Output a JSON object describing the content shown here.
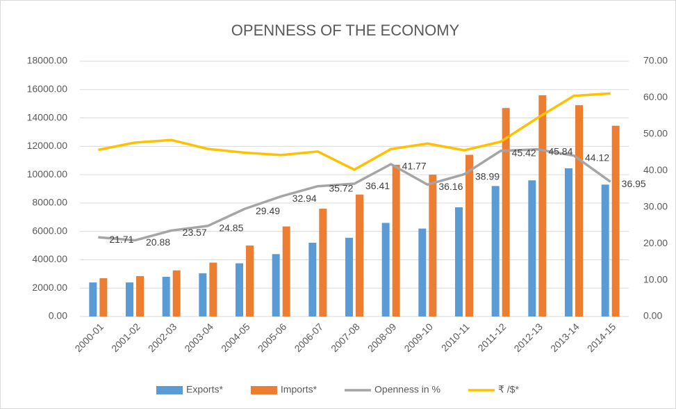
{
  "chart_data": {
    "type": "bar_line",
    "title": "OPENNESS OF THE ECONOMY",
    "categories": [
      "2000-01",
      "2001-02",
      "2002-03",
      "2003-04",
      "2004-05",
      "2005-06",
      "2006-07",
      "2007-08",
      "2008-09",
      "2009-10",
      "2010-11",
      "2011-12",
      "2012-13",
      "2013-14",
      "2014-15"
    ],
    "series": [
      {
        "name": "Exports*",
        "type": "bar",
        "color": "#5b9bd5",
        "values": [
          2400,
          2400,
          2800,
          3050,
          3750,
          4400,
          5200,
          5550,
          6600,
          6200,
          7700,
          9200,
          9600,
          10450,
          9300
        ]
      },
      {
        "name": "Imports*",
        "type": "bar",
        "color": "#ed7d31",
        "values": [
          2700,
          2850,
          3250,
          3800,
          5000,
          6350,
          7600,
          8600,
          10700,
          10000,
          11400,
          14700,
          15600,
          14900,
          13450
        ]
      },
      {
        "name": "Openness in %",
        "type": "line",
        "axis": "y2",
        "color": "#a5a5a5",
        "values": [
          21.71,
          20.88,
          23.57,
          24.85,
          29.49,
          32.94,
          35.72,
          36.41,
          41.77,
          36.16,
          38.99,
          45.42,
          45.84,
          44.12,
          36.95
        ],
        "show_labels": true
      },
      {
        "name": "₹ /$*",
        "type": "line",
        "axis": "y2",
        "color": "#ffc000",
        "values": [
          45.68,
          47.69,
          48.4,
          45.95,
          44.93,
          44.27,
          45.24,
          40.26,
          45.91,
          47.42,
          45.58,
          47.92,
          54.41,
          60.5,
          61.15
        ]
      }
    ],
    "ylim": [
      0,
      18000
    ],
    "yticks": [
      {
        "value": 0,
        "label": "0.00"
      },
      {
        "value": 2000,
        "label": "2000.00"
      },
      {
        "value": 4000,
        "label": "4000.00"
      },
      {
        "value": 6000,
        "label": "6000.00"
      },
      {
        "value": 8000,
        "label": "8000.00"
      },
      {
        "value": 10000,
        "label": "10000.00"
      },
      {
        "value": 12000,
        "label": "12000.00"
      },
      {
        "value": 14000,
        "label": "14000.00"
      },
      {
        "value": 16000,
        "label": "16000.00"
      },
      {
        "value": 18000,
        "label": "18000.00"
      }
    ],
    "y2lim": [
      0,
      70
    ],
    "y2ticks": [
      {
        "value": 0,
        "label": "0.00"
      },
      {
        "value": 10,
        "label": "10.00"
      },
      {
        "value": 20,
        "label": "20.00"
      },
      {
        "value": 30,
        "label": "30.00"
      },
      {
        "value": 40,
        "label": "40.00"
      },
      {
        "value": 50,
        "label": "50.00"
      },
      {
        "value": 60,
        "label": "60.00"
      },
      {
        "value": 70,
        "label": "70.00"
      }
    ],
    "grid": true,
    "legend": "bottom"
  }
}
